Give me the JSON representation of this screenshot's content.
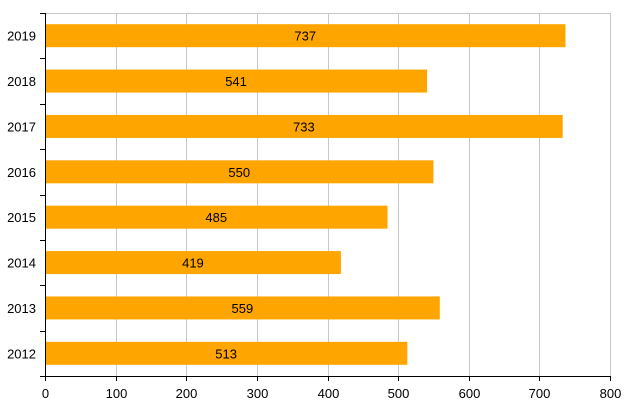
{
  "chart_data": {
    "type": "bar",
    "orientation": "horizontal",
    "categories": [
      "2019",
      "2018",
      "2017",
      "2016",
      "2015",
      "2014",
      "2013",
      "2012"
    ],
    "values": [
      737,
      541,
      733,
      550,
      485,
      419,
      559,
      513
    ],
    "data_labels": [
      "737",
      "541",
      "733",
      "550",
      "485",
      "419",
      "559",
      "513"
    ],
    "title": "",
    "xlabel": "",
    "ylabel": "",
    "xlim": [
      0,
      800
    ],
    "x_ticks": [
      0,
      100,
      200,
      300,
      400,
      500,
      600,
      700,
      800
    ],
    "x_tick_labels": [
      "0",
      "100",
      "200",
      "300",
      "400",
      "500",
      "600",
      "700",
      "800"
    ],
    "grid": "vertical",
    "legend": "none",
    "colors": {
      "bar": "#FFA500",
      "grid": "#c8c8c8",
      "axis": "#000000",
      "text": "#000000"
    }
  }
}
